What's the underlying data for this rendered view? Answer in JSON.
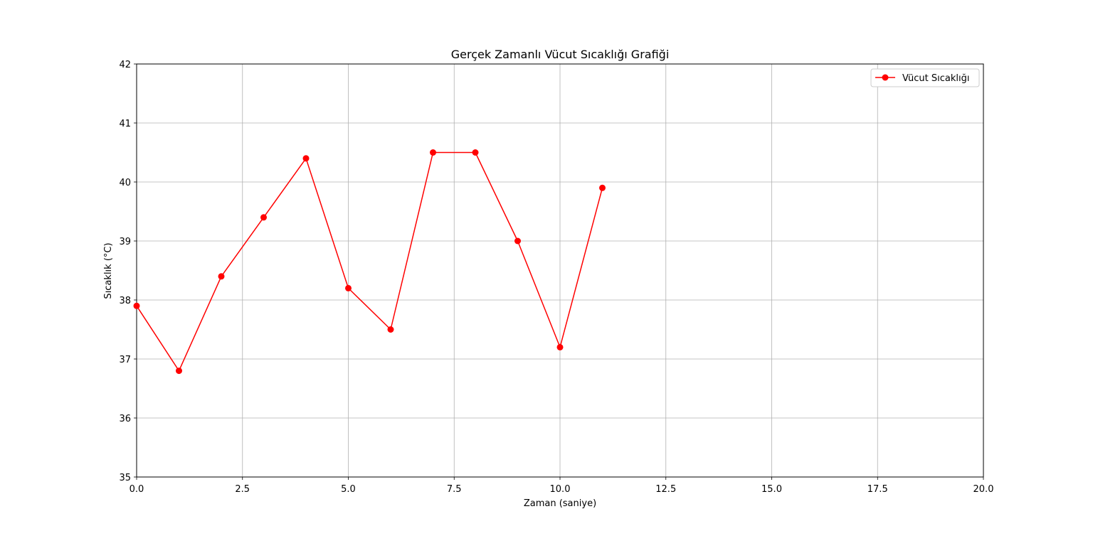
{
  "chart_data": {
    "type": "line",
    "title": "Gerçek Zamanlı Vücut Sıcaklığı Grafiği",
    "xlabel": "Zaman (saniye)",
    "ylabel": "Sıcaklık (°C)",
    "xlim": [
      0,
      20
    ],
    "ylim": [
      35,
      42
    ],
    "xticks": [
      0,
      2.5,
      5,
      7.5,
      10,
      12.5,
      15,
      17.5,
      20
    ],
    "xtick_labels": [
      "0.0",
      "2.5",
      "5.0",
      "7.5",
      "10.0",
      "12.5",
      "15.0",
      "17.5",
      "20.0"
    ],
    "yticks": [
      35,
      36,
      37,
      38,
      39,
      40,
      41,
      42
    ],
    "ytick_labels": [
      "35",
      "36",
      "37",
      "38",
      "39",
      "40",
      "41",
      "42"
    ],
    "grid": true,
    "legend_position": "top-right",
    "series": [
      {
        "name": "Vücut Sıcaklığı",
        "color": "#ff0000",
        "marker": "circle",
        "x": [
          0,
          1,
          2,
          3,
          4,
          5,
          6,
          7,
          8,
          9,
          10,
          11
        ],
        "y": [
          37.9,
          36.8,
          38.4,
          39.4,
          40.4,
          38.2,
          37.5,
          40.5,
          40.5,
          39.0,
          37.2,
          39.9
        ]
      }
    ]
  }
}
